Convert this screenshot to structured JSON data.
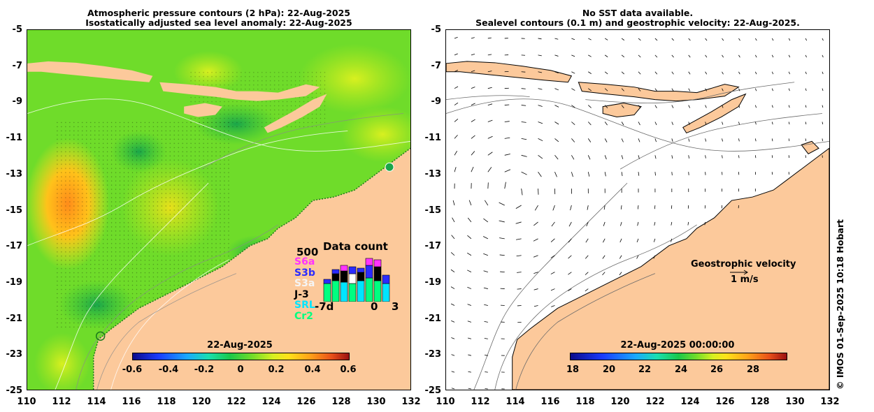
{
  "left_panel": {
    "title_line1": "Atmospheric pressure contours (2 hPa): 22-Aug-2025",
    "title_line2": "Isostatically adjusted sea level anomaly: 22-Aug-2025",
    "colorbar": {
      "title": "22-Aug-2025",
      "ticks": [
        "-0.6",
        "-0.4",
        "-0.2",
        "0",
        "0.2",
        "0.4",
        "0.6"
      ]
    },
    "data_count": {
      "title": "Data count",
      "max_label": "500",
      "missions": [
        "S6a",
        "S3b",
        "S3a",
        "J-3",
        "SRL",
        "Cr2"
      ],
      "mission_colors": [
        "#ff33ff",
        "#2b2bff",
        "#ffffff",
        "#000000",
        "#00e5ff",
        "#00ff80"
      ],
      "x_labels": [
        "-7d",
        "0",
        "3"
      ]
    }
  },
  "right_panel": {
    "title_line1": "No SST data available.",
    "title_line2": "Sealevel contours (0.1 m) and geostrophic velocity: 22-Aug-2025.",
    "velocity_legend_title": "Geostrophic velocity",
    "velocity_legend_scale": "1 m/s",
    "colorbar": {
      "title": "22-Aug-2025 00:00:00",
      "ticks": [
        "18",
        "20",
        "22",
        "24",
        "26",
        "28"
      ]
    }
  },
  "axes": {
    "lat_ticks": [
      "-5",
      "-7",
      "-9",
      "-11",
      "-13",
      "-15",
      "-17",
      "-19",
      "-21",
      "-23",
      "-25"
    ],
    "lon_ticks": [
      "110",
      "112",
      "114",
      "116",
      "118",
      "120",
      "122",
      "124",
      "126",
      "128",
      "130",
      "132"
    ]
  },
  "copyright": "© IMOS 01-Sep-2025 10:18 Hobart",
  "colors": {
    "land": "#fcc99b",
    "sea_anomaly_base": "#6fdc2a",
    "colorbar_low": "#0b0b8a",
    "colorbar_high": "#9a1010"
  }
}
